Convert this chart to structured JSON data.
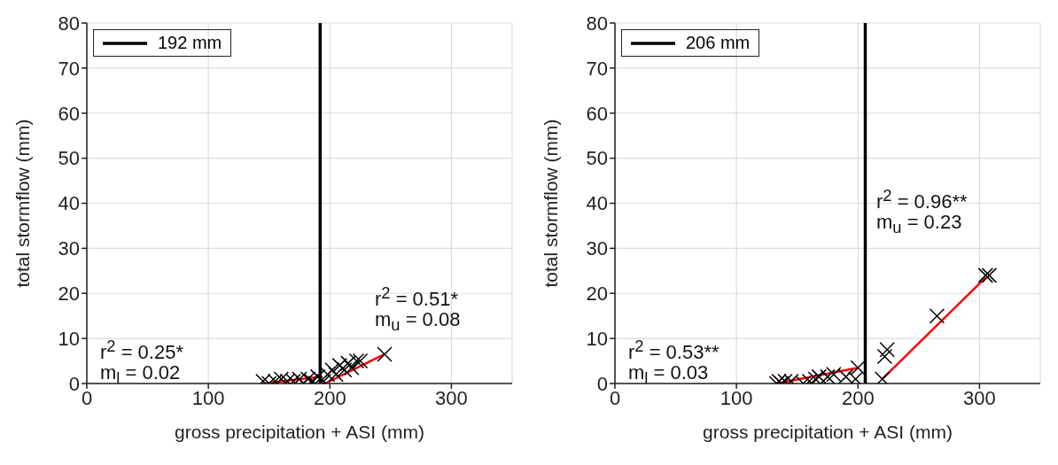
{
  "chart_data": [
    {
      "type": "scatter",
      "xlabel": "gross precipitation + ASI (mm)",
      "ylabel": "total stormflow (mm)",
      "xlim": [
        0,
        350
      ],
      "xticks": [
        0,
        100,
        200,
        300
      ],
      "ylim": [
        0,
        80
      ],
      "yticks": [
        0,
        10,
        20,
        30,
        40,
        50,
        60,
        70,
        80
      ],
      "grid": true,
      "legend": "top left",
      "ref_lines": [
        {
          "axis": "x",
          "value": 192,
          "label": "192 mm",
          "color": "#000000"
        }
      ],
      "annotations": [
        "r$^{2}$ = 0.25*",
        "m$_{l}$ = 0.02",
        "r$^{2}$ = 0.51*",
        "m$_{u}$ = 0.08"
      ],
      "series": [
        {
          "marker": "cross",
          "color": "#000000",
          "x": [
            145,
            150,
            155,
            160,
            165,
            170,
            175,
            178,
            182,
            185,
            188,
            190,
            195,
            198,
            202,
            205,
            208,
            212,
            215,
            218,
            222,
            225,
            245
          ],
          "values": [
            0.5,
            0,
            0.5,
            1,
            0.5,
            0.5,
            1,
            0,
            1,
            0.5,
            0,
            1.5,
            0.5,
            2,
            3,
            2,
            4,
            3,
            4.5,
            3.5,
            5,
            5,
            6.5
          ]
        },
        {
          "type": "line",
          "color": "#ff0000",
          "x": [
            145,
            192
          ],
          "values": [
            0,
            1.5
          ]
        },
        {
          "type": "line",
          "color": "#ff0000",
          "x": [
            196,
            245
          ],
          "values": [
            0,
            6.5
          ]
        }
      ]
    },
    {
      "type": "scatter",
      "xlabel": "gross precipitation + ASI (mm)",
      "ylabel": "total stormflow (mm)",
      "xlim": [
        0,
        350
      ],
      "xticks": [
        0,
        100,
        200,
        300
      ],
      "ylim": [
        0,
        80
      ],
      "yticks": [
        0,
        10,
        20,
        30,
        40,
        50,
        60,
        70,
        80
      ],
      "grid": true,
      "legend": "top left",
      "ref_lines": [
        {
          "axis": "x",
          "value": 206,
          "label": "206 mm",
          "color": "#000000"
        }
      ],
      "annotations": [
        "r$^{2}$ = 0.53**",
        "m$_{l}$ = 0.03",
        "r$^{2}$ = 0.96**",
        "m$_{u}$ = 0.23"
      ],
      "series": [
        {
          "marker": "cross",
          "color": "#000000",
          "x": [
            133,
            135,
            137,
            140,
            145,
            155,
            160,
            165,
            168,
            175,
            180,
            190,
            198,
            200,
            220,
            222,
            224,
            265,
            305,
            308
          ],
          "values": [
            0,
            0.5,
            0,
            0.5,
            0.5,
            0,
            0.5,
            1,
            1.5,
            1.5,
            2,
            1.5,
            1,
            3.5,
            1,
            6,
            7.5,
            15,
            24,
            24
          ]
        },
        {
          "type": "line",
          "color": "#ff0000",
          "x": [
            133,
            200
          ],
          "values": [
            0,
            3.5
          ]
        },
        {
          "type": "line",
          "color": "#ff0000",
          "x": [
            220,
            305
          ],
          "values": [
            1,
            23.5
          ]
        }
      ]
    }
  ]
}
